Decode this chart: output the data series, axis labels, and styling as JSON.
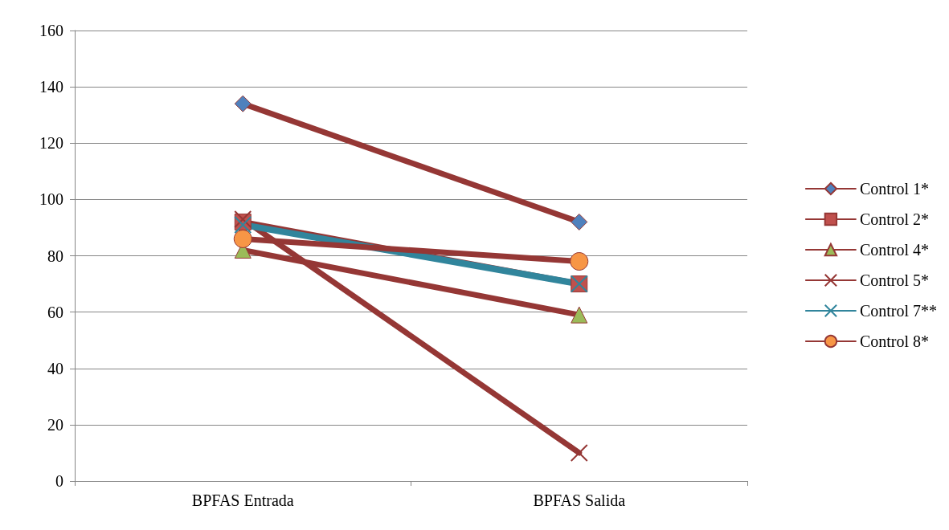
{
  "chart_data": {
    "type": "line",
    "categories": [
      "BPFAS Entrada",
      "BPFAS Salida"
    ],
    "ylim": [
      0,
      160
    ],
    "yticks": [
      0,
      20,
      40,
      60,
      80,
      100,
      120,
      140,
      160
    ],
    "grid": "y",
    "legend": "right",
    "series": [
      {
        "name": "Control 1*",
        "color": "#953735",
        "marker": "diamond",
        "values": [
          134,
          92
        ]
      },
      {
        "name": "Control 2*",
        "color": "#953735",
        "marker": "square",
        "values": [
          92,
          70
        ]
      },
      {
        "name": "Control 4*",
        "color": "#953735",
        "marker": "triangle",
        "values": [
          82,
          59
        ]
      },
      {
        "name": "Control 5*",
        "color": "#953735",
        "marker": "cross",
        "values": [
          93,
          10
        ]
      },
      {
        "name": "Control 7**",
        "color": "#31859c",
        "marker": "cross",
        "values": [
          91,
          70
        ]
      },
      {
        "name": "Control 8*",
        "color": "#953735",
        "marker": "circle",
        "values": [
          86,
          78
        ]
      }
    ]
  }
}
